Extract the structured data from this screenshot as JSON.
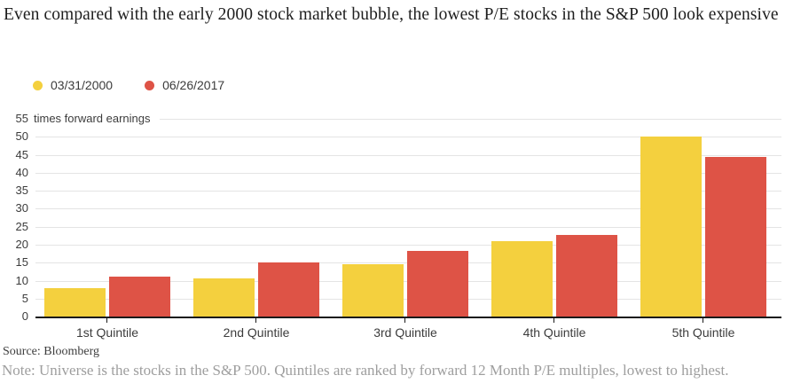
{
  "title": "Even compared with the early 2000 stock market bubble, the lowest P/E stocks in the S&P 500 look expensive",
  "chart_data": {
    "type": "bar",
    "categories": [
      "1st Quintile",
      "2nd Quintile",
      "3rd Quintile",
      "4th Quintile",
      "5th Quintile"
    ],
    "series": [
      {
        "name": "03/31/2000",
        "color": "#F4D03E",
        "values": [
          7.8,
          10.7,
          14.5,
          20.9,
          50.2
        ]
      },
      {
        "name": "06/26/2017",
        "color": "#DE5346",
        "values": [
          11.2,
          15.0,
          18.3,
          22.6,
          44.5
        ]
      }
    ],
    "title": "Even compared with the early 2000 stock market bubble, the lowest P/E stocks in the S&P 500 look expensive",
    "xlabel": "",
    "ylabel": "times forward earnings",
    "y_axis_top": {
      "value": "55",
      "label": "times forward earnings"
    },
    "yticks": [
      0,
      5,
      10,
      15,
      20,
      25,
      30,
      35,
      40,
      45,
      50,
      55
    ],
    "ylim": [
      0,
      55
    ],
    "grid": true,
    "legend_position": "top-left"
  },
  "source": "Source: Bloomberg",
  "note": "Note: Universe is the stocks in the S&P 500. Quintiles are ranked by forward 12 Month P/E multiples, lowest to highest."
}
